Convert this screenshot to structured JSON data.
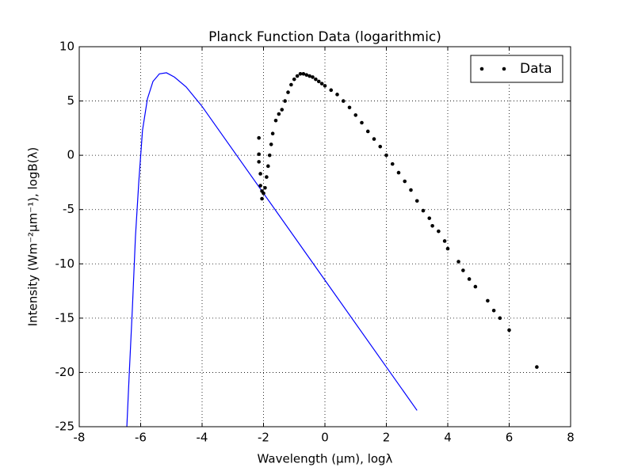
{
  "chart_data": {
    "type": "line_scatter",
    "title": "Planck Function Data (logarithmic)",
    "xlabel": "Wavelength (μm), logλ",
    "ylabel": "Intensity (Wm⁻²μm⁻¹), logB(λ)",
    "xlim": [
      -8,
      8
    ],
    "xticks": [
      -8,
      -6,
      -4,
      -2,
      0,
      2,
      4,
      6,
      8
    ],
    "ylim": [
      -25,
      10
    ],
    "yticks": [
      -25,
      -20,
      -15,
      -10,
      -5,
      0,
      5,
      10
    ],
    "grid": true,
    "legend": "upper right",
    "series": [
      {
        "style": "line",
        "color": "#0000ff",
        "x": [
          -6.45,
          -6.37,
          -6.27,
          -6.17,
          -6.06,
          -5.94,
          -5.78,
          -5.6,
          -5.39,
          -5.16,
          -4.9,
          -4.52,
          -4.0,
          0,
          3.0
        ],
        "values": [
          -25.0,
          -20.0,
          -14.1,
          -7.5,
          -2.4,
          2.3,
          5.2,
          6.8,
          7.5,
          7.6,
          7.2,
          6.3,
          4.5,
          -11.5,
          -23.5
        ]
      },
      {
        "name": "Data",
        "style": "markers",
        "color": "#000000",
        "x": [
          -2.15,
          -2.15,
          -2.15,
          -2.1,
          -2.1,
          -2.05,
          -2.05,
          -2.0,
          -1.95,
          -1.9,
          -1.85,
          -1.8,
          -1.75,
          -1.7,
          -1.6,
          -1.5,
          -1.4,
          -1.3,
          -1.2,
          -1.1,
          -1.0,
          -0.9,
          -0.8,
          -0.7,
          -0.6,
          -0.5,
          -0.4,
          -0.3,
          -0.2,
          -0.1,
          0,
          0.2,
          0.4,
          0.6,
          0.8,
          1.0,
          1.2,
          1.4,
          1.6,
          1.8,
          2.0,
          2.2,
          2.4,
          2.6,
          2.8,
          3.0,
          3.2,
          3.4,
          3.5,
          3.7,
          3.9,
          4.0,
          4.35,
          4.5,
          4.7,
          4.9,
          5.3,
          5.5,
          5.7,
          6.0,
          6.9
        ],
        "values": [
          1.6,
          0.1,
          -0.6,
          -1.7,
          -2.8,
          -3.3,
          -4.0,
          -3.5,
          -3.0,
          -2.0,
          -1.0,
          0,
          1,
          2,
          3.2,
          3.8,
          4.2,
          5.0,
          5.8,
          6.5,
          7.0,
          7.3,
          7.5,
          7.5,
          7.4,
          7.3,
          7.2,
          7.0,
          6.8,
          6.6,
          6.4,
          6.0,
          5.6,
          5.0,
          4.4,
          3.7,
          3.0,
          2.2,
          1.5,
          0.8,
          0,
          -0.8,
          -1.6,
          -2.4,
          -3.2,
          -4.2,
          -5.1,
          -5.8,
          -6.5,
          -7.0,
          -7.9,
          -8.6,
          -9.8,
          -10.6,
          -11.4,
          -12.1,
          -13.4,
          -14.3,
          -15.0,
          -16.1,
          -19.5
        ]
      }
    ]
  }
}
